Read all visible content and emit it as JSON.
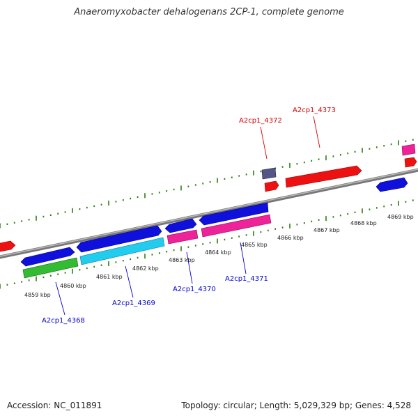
{
  "title": "Anaeromyxobacter dehalogenans 2CP-1, complete genome",
  "footer": {
    "accession": "Accession: NC_011891",
    "summary": "Topology: circular; Length: 5,029,329 bp; Genes: 4,528"
  },
  "ruler_labels": [
    "4859 kbp",
    "4860 kbp",
    "4861 kbp",
    "4862 kbp",
    "4863 kbp",
    "4864 kbp",
    "4865 kbp",
    "4866 kbp",
    "4867 kbp",
    "4868 kbp",
    "4869 kbp"
  ],
  "gene_labels": [
    {
      "text": "A2cp1_4368",
      "color": "#0000cc"
    },
    {
      "text": "A2cp1_4369",
      "color": "#0000cc"
    },
    {
      "text": "A2cp1_4370",
      "color": "#0000cc"
    },
    {
      "text": "A2cp1_4371",
      "color": "#0000cc"
    },
    {
      "text": "A2cp1_4372",
      "color": "#dd0000"
    },
    {
      "text": "A2cp1_4373",
      "color": "#dd0000"
    }
  ],
  "colors": {
    "backbone": "#888888",
    "ticks": "#2d7d12",
    "gene_blue": "#1010dd",
    "gene_red": "#ee1111",
    "gene_pink": "#ee2299",
    "gene_cyan": "#22ccee",
    "gene_green": "#33bb33",
    "gene_navy": "#555588"
  }
}
